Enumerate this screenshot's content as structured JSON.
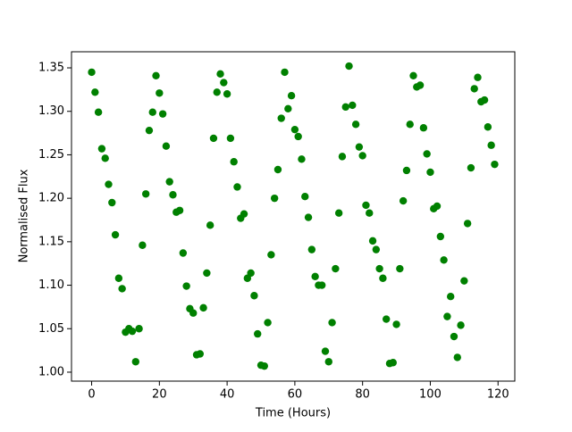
{
  "chart_data": {
    "type": "scatter",
    "x_label": "Time (Hours)",
    "y_label": "Normalised Flux",
    "color": "#008000",
    "x": [
      0,
      1,
      2,
      3,
      4,
      5,
      6,
      7,
      8,
      9,
      10,
      11,
      12,
      13,
      14,
      15,
      16,
      17,
      18,
      19,
      20,
      21,
      22,
      23,
      24,
      25,
      26,
      27,
      28,
      29,
      30,
      31,
      32,
      33,
      34,
      35,
      36,
      37,
      38,
      39,
      40,
      41,
      42,
      43,
      44,
      45,
      46,
      47,
      48,
      49,
      50,
      51,
      52,
      53,
      54,
      55,
      56,
      57,
      58,
      59,
      60,
      61,
      62,
      63,
      64,
      65,
      66,
      67,
      68,
      69,
      70,
      71,
      72,
      73,
      74,
      75,
      76,
      77,
      78,
      79,
      80,
      81,
      82,
      83,
      84,
      85,
      86,
      87,
      88,
      89,
      90,
      91,
      92,
      93,
      94,
      95,
      96,
      97,
      98,
      99,
      100,
      101,
      102,
      103,
      104,
      105,
      106,
      107,
      108,
      109,
      110,
      111,
      112,
      113,
      114,
      115,
      116,
      117,
      118,
      119
    ],
    "values": [
      1.345,
      1.322,
      1.299,
      1.257,
      1.246,
      1.216,
      1.195,
      1.158,
      1.108,
      1.096,
      1.046,
      1.05,
      1.047,
      1.012,
      1.05,
      1.146,
      1.205,
      1.278,
      1.299,
      1.341,
      1.321,
      1.297,
      1.26,
      1.219,
      1.204,
      1.184,
      1.186,
      1.137,
      1.099,
      1.073,
      1.068,
      1.02,
      1.021,
      1.074,
      1.114,
      1.169,
      1.269,
      1.322,
      1.343,
      1.333,
      1.32,
      1.269,
      1.242,
      1.213,
      1.177,
      1.182,
      1.108,
      1.114,
      1.088,
      1.044,
      1.008,
      1.007,
      1.057,
      1.135,
      1.2,
      1.233,
      1.292,
      1.345,
      1.303,
      1.318,
      1.279,
      1.271,
      1.245,
      1.202,
      1.178,
      1.141,
      1.11,
      1.1,
      1.1,
      1.024,
      1.012,
      1.057,
      1.119,
      1.183,
      1.248,
      1.305,
      1.352,
      1.307,
      1.285,
      1.259,
      1.249,
      1.192,
      1.183,
      1.151,
      1.141,
      1.119,
      1.108,
      1.061,
      1.01,
      1.011,
      1.055,
      1.119,
      1.197,
      1.232,
      1.285,
      1.341,
      1.328,
      1.33,
      1.281,
      1.251,
      1.23,
      1.188,
      1.191,
      1.156,
      1.129,
      1.064,
      1.087,
      1.041,
      1.017,
      1.054,
      1.105,
      1.171,
      1.235,
      1.326,
      1.339,
      1.311,
      1.313,
      1.282,
      1.261,
      1.239
    ],
    "xlim": [
      -5.95,
      124.95
    ],
    "ylim": [
      0.9897,
      1.3685
    ],
    "xticks": [
      0,
      20,
      40,
      60,
      80,
      100,
      120
    ],
    "yticks": [
      {
        "value": 1.0,
        "label": "1.00"
      },
      1.05,
      {
        "value": 1.1,
        "label": "1.10"
      },
      1.15,
      {
        "value": 1.2,
        "label": "1.20"
      },
      1.25,
      {
        "value": 1.3,
        "label": "1.30"
      },
      1.35
    ],
    "grid": false
  }
}
